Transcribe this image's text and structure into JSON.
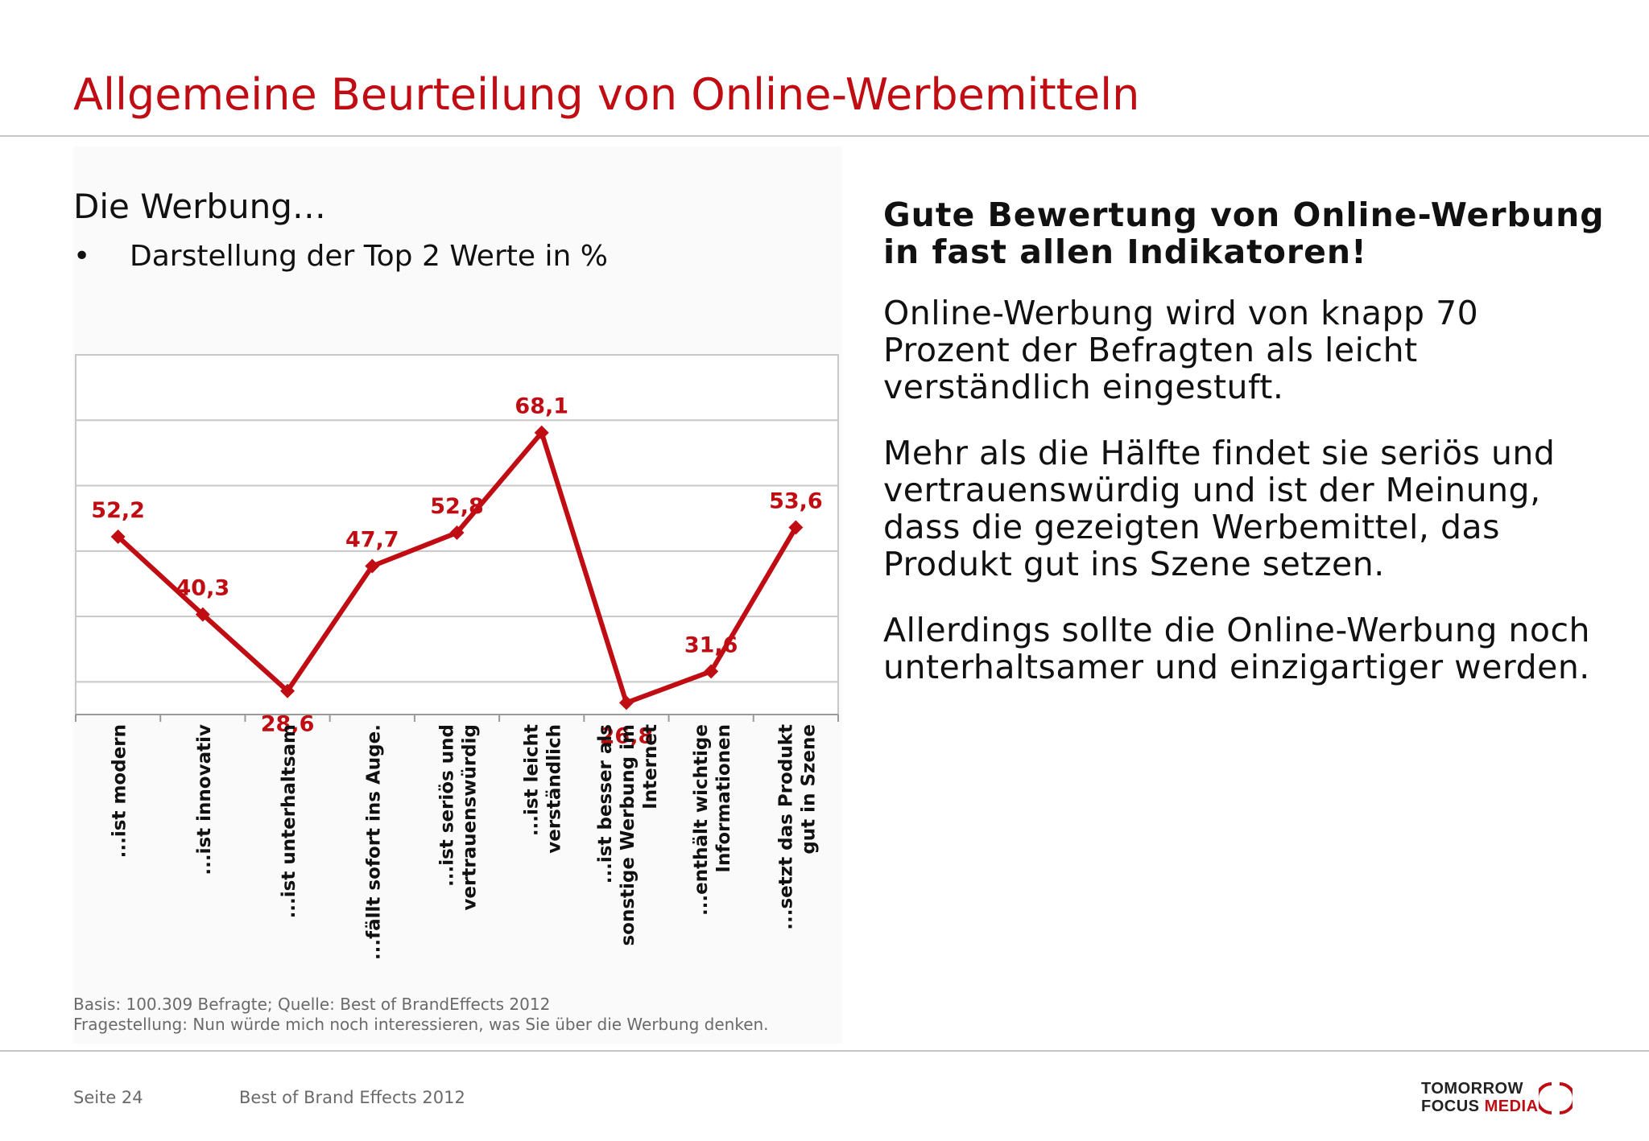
{
  "page": {
    "title": "Allgemeine Beurteilung von Online-Werbemitteln",
    "subtitle": "Die Werbung…",
    "bullet_marker": "•",
    "bullet": "Darstellung der Top 2 Werte in %",
    "source_line1": "Basis: 100.309 Befragte;  Quelle: Best of BrandEffects 2012",
    "source_line2": "Fragestellung: Nun würde mich noch interessieren, was Sie über die Werbung denken.",
    "footer_page": "Seite 24",
    "footer_title": "Best of Brand Effects 2012",
    "logo_line1": "TOMORROW",
    "logo_line2a": "FOCUS",
    "logo_line2b": "MEDIA"
  },
  "right": {
    "heading": "Gute Bewertung von Online-Werbung in fast allen Indikatoren!",
    "p1": "Online-Werbung wird von knapp 70 Prozent der Befragten als leicht verständlich eingestuft.",
    "p2": "Mehr als die Hälfte findet sie seriös und vertrauenswürdig und ist der Meinung, dass die gezeigten Werbemittel, das Produkt gut ins Szene setzen.",
    "p3": "Allerdings sollte die Online-Werbung noch unterhaltsamer und einzigartiger werden."
  },
  "colors": {
    "accent": "#c00d13",
    "grid": "#c8c8c8",
    "text": "#111111",
    "muted": "#6a6a6a"
  },
  "chart_data": {
    "type": "line",
    "categories": [
      [
        "...ist modern"
      ],
      [
        "...ist innovativ"
      ],
      [
        "...ist unterhaltsam"
      ],
      [
        "...fällt sofort ins Auge."
      ],
      [
        "...ist seriös und",
        "vertrauenswürdig"
      ],
      [
        "...ist leicht",
        "verständlich"
      ],
      [
        "...ist besser als",
        "sonstige Werbung im",
        "Internet"
      ],
      [
        "...enthält wichtige",
        "Informationen"
      ],
      [
        "...setzt das Produkt",
        "gut in Szene"
      ]
    ],
    "series": [
      {
        "values": [
          52.2,
          40.3,
          28.6,
          47.7,
          52.8,
          68.1,
          26.8,
          31.6,
          53.6
        ]
      }
    ],
    "value_labels": [
      "52,2",
      "40,3",
      "28,6",
      "47,7",
      "52,8",
      "68,1",
      "26,8",
      "31,6",
      "53,6"
    ],
    "label_position": [
      "above",
      "above",
      "below",
      "above",
      "above",
      "above",
      "below",
      "above",
      "above"
    ],
    "ylim": [
      25,
      80
    ],
    "grid": true,
    "legend": false
  }
}
